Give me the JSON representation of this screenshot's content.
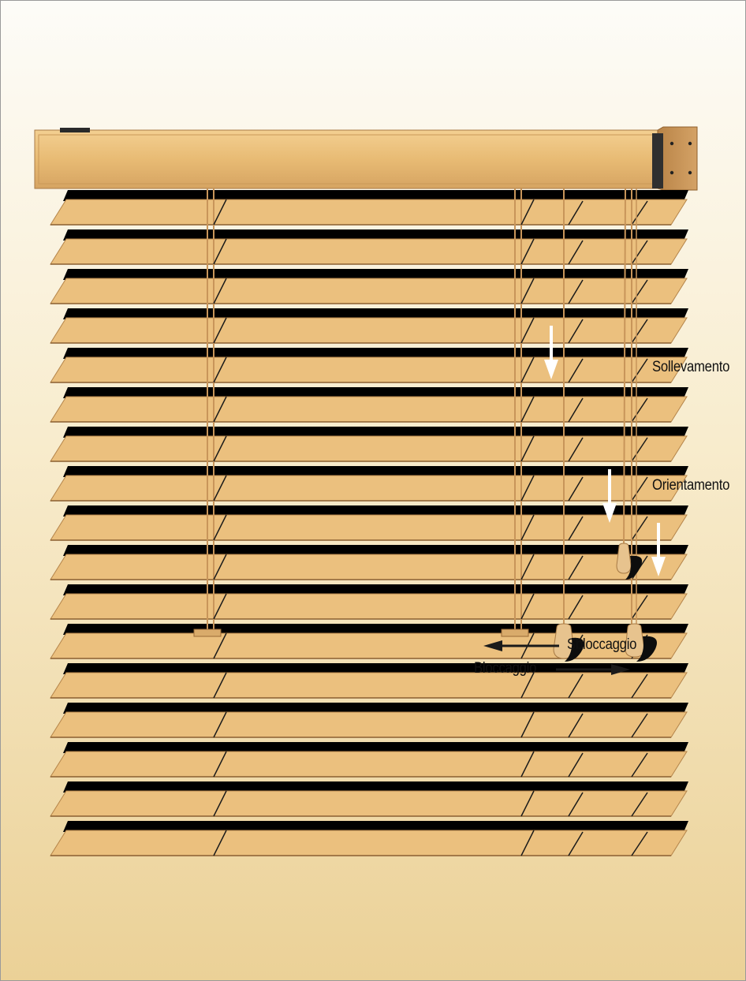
{
  "labels": {
    "lift": "Sollevamento",
    "tilt": "Orientamento",
    "unlock": "Sbloccaggio",
    "lock": "Bloccaggio"
  },
  "colors": {
    "wood": "#ebc07e",
    "headrail": "#e9bc74",
    "slat_shadow": "#000000",
    "cord": "#c8955a",
    "background_top": "#fdfcf8",
    "background_bottom": "#ebd197"
  },
  "diagram": {
    "subject": "horizontal wooden venetian blind",
    "slat_count": 17,
    "direction_arrows": [
      "down",
      "down",
      "down",
      "left",
      "right"
    ]
  }
}
